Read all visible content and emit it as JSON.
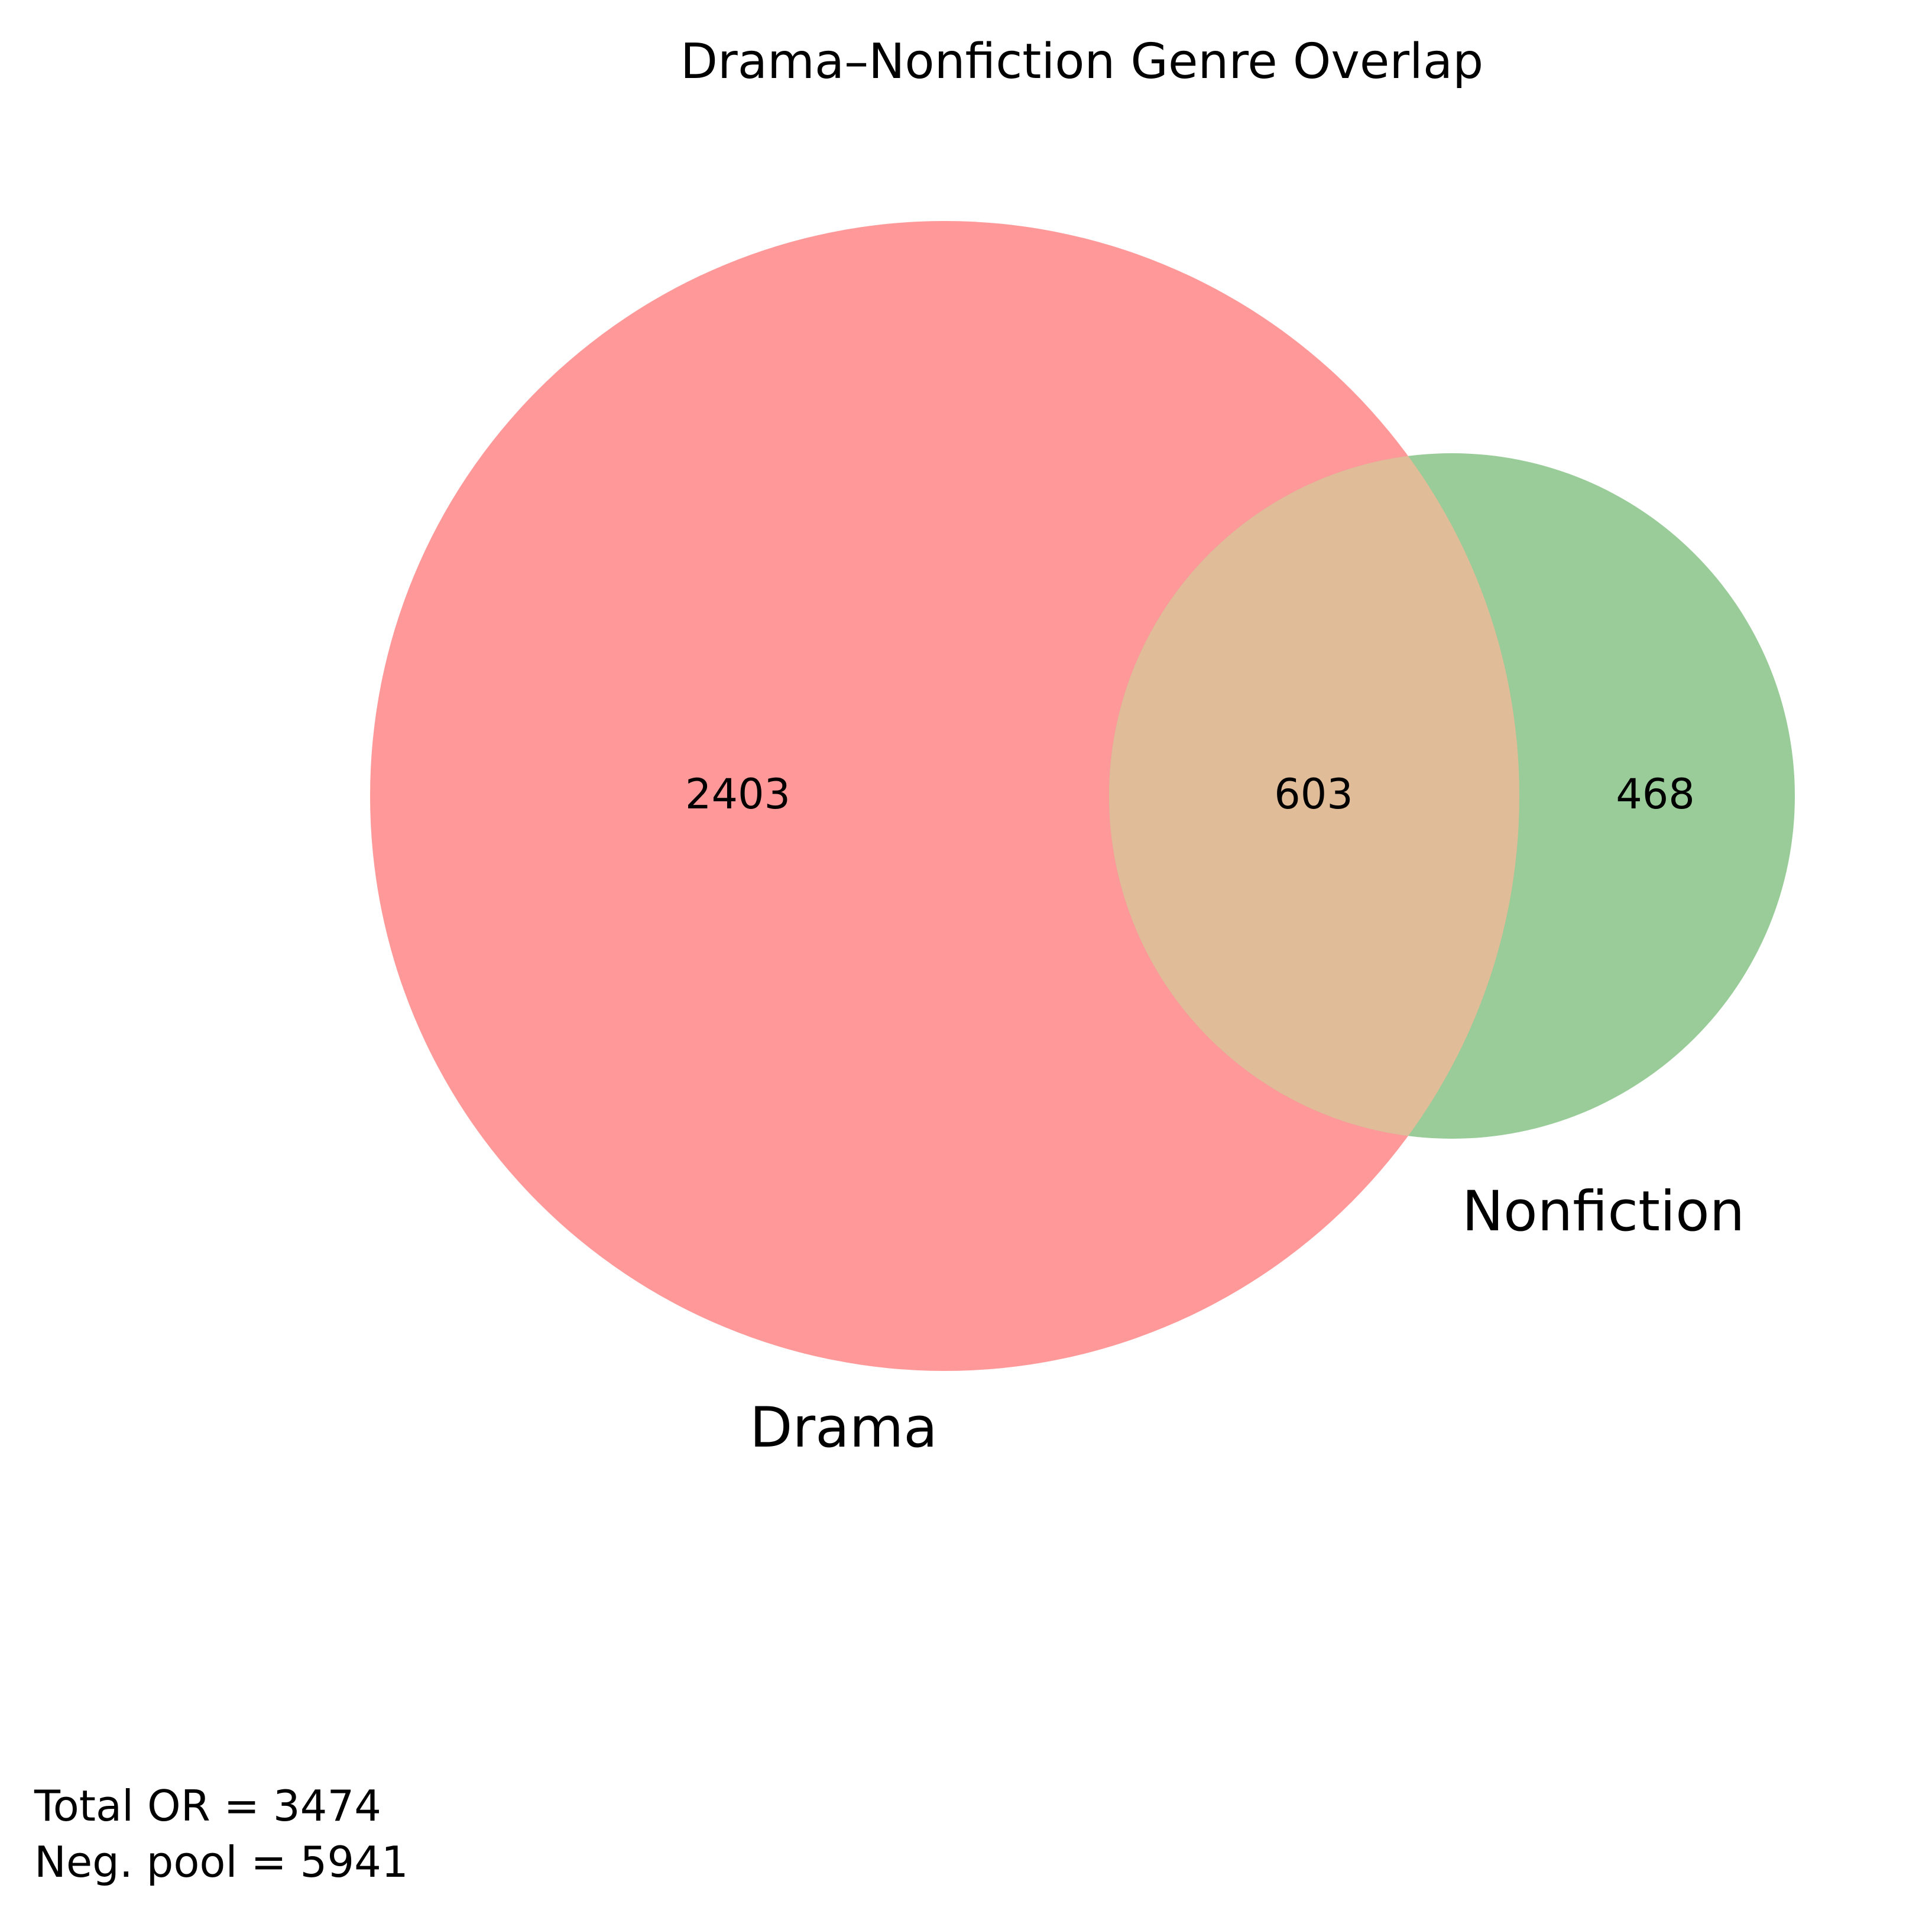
{
  "chart_data": {
    "type": "venn",
    "title": "Drama–Nonfiction Genre Overlap",
    "sets": [
      {
        "name": "Drama",
        "only": 2403,
        "color": "#ff9999"
      },
      {
        "name": "Nonfiction",
        "only": 468,
        "color": "#99cc99"
      }
    ],
    "intersection": {
      "value": 603,
      "color": "#e0bc98"
    },
    "grid": false,
    "legend": "none"
  },
  "notes": {
    "total": "Total OR = 3474",
    "neg_pool": "Neg. pool = 5941"
  }
}
